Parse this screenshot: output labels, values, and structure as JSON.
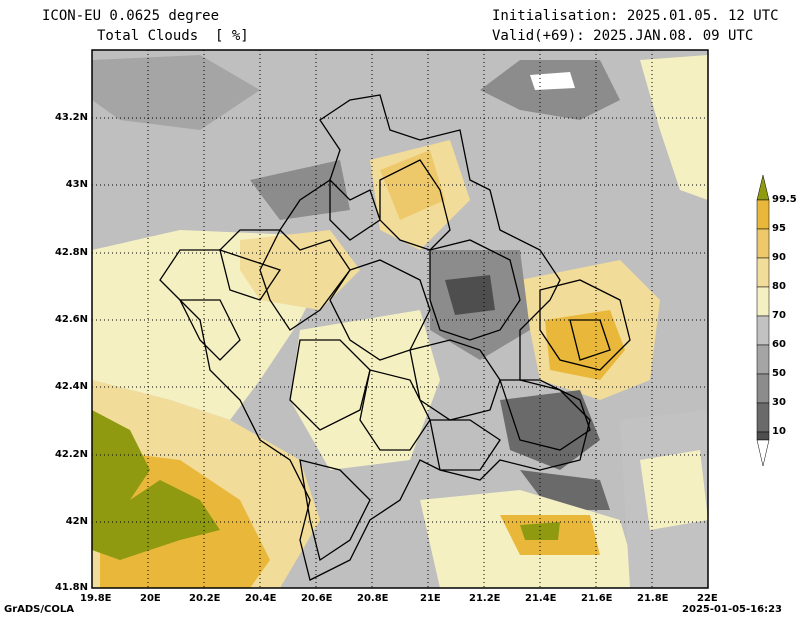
{
  "header": {
    "model": "ICON-EU 0.0625 degree",
    "variable": "Total Clouds  [ %]",
    "init": "Initialisation: 2025.01.05. 12 UTC",
    "valid": "Valid(+69): 2025.JAN.08. 09 UTC"
  },
  "footer": {
    "left": "GrADS/COLA",
    "right": "2025-01-05-16:23"
  },
  "axes": {
    "lat_ticks": [
      "43.2N",
      "43N",
      "42.8N",
      "42.6N",
      "42.4N",
      "42.2N",
      "42N",
      "41.8N"
    ],
    "lon_ticks": [
      "19.8E",
      "20E",
      "20.2E",
      "20.4E",
      "20.6E",
      "20.8E",
      "21E",
      "21.2E",
      "21.4E",
      "21.6E",
      "21.8E",
      "22E"
    ]
  },
  "legend": {
    "labels": [
      "99.5",
      "95",
      "90",
      "80",
      "70",
      "60",
      "50",
      "30",
      "10"
    ],
    "colors": [
      "#8f9a10",
      "#e9b83a",
      "#edc96b",
      "#f2dc99",
      "#f5f0c2",
      "#c2c2c2",
      "#a5a5a5",
      "#8c8c8c",
      "#6a6a6a",
      "#4e4e4e",
      "#ffffff"
    ]
  }
}
